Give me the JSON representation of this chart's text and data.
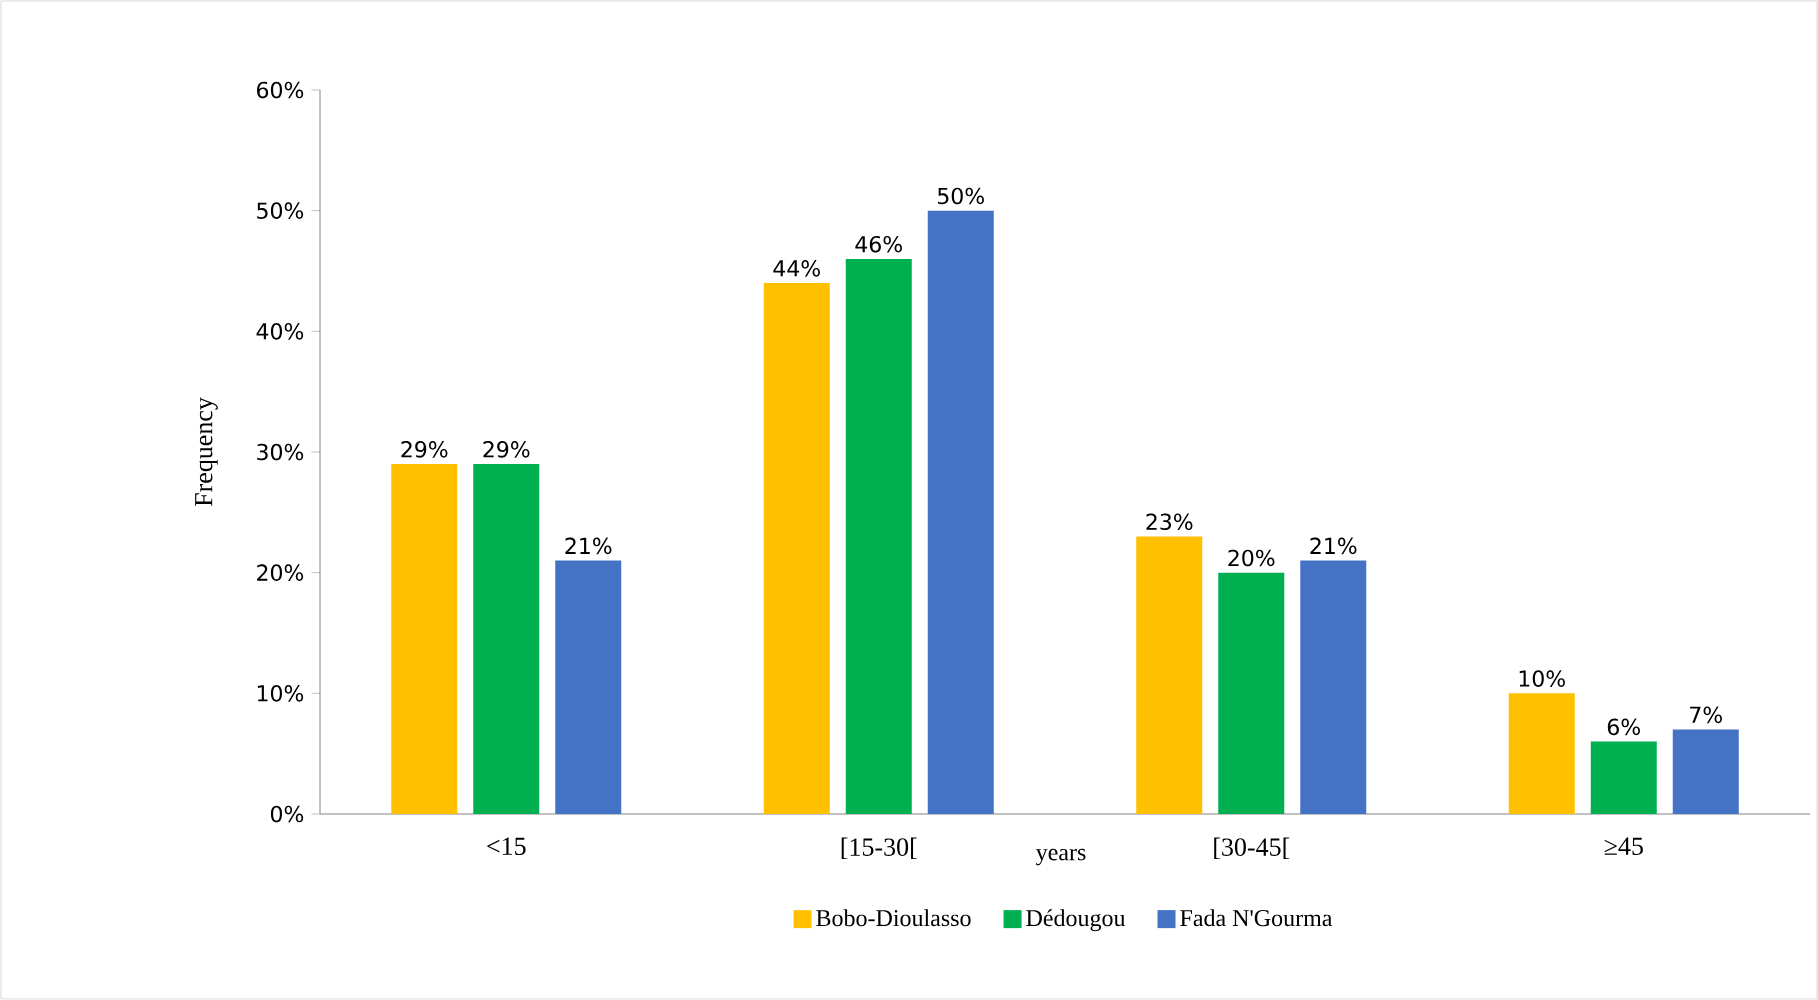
{
  "chart_data": {
    "type": "bar",
    "xlabel": "years",
    "ylabel": "Frequency",
    "categories": [
      "<15",
      "[15-30[",
      "[30-45[",
      "≥45"
    ],
    "series": [
      {
        "name": "Bobo-Dioulasso",
        "color": "#ffc000",
        "values": [
          29,
          44,
          23,
          10
        ],
        "value_labels": [
          "29%",
          "44%",
          "23%",
          "10%"
        ]
      },
      {
        "name": "Dédougou",
        "color": "#00b050",
        "values": [
          29,
          46,
          20,
          6
        ],
        "value_labels": [
          "29%",
          "46%",
          "20%",
          "6%"
        ]
      },
      {
        "name": "Fada N'Gourma",
        "color": "#4472c4",
        "values": [
          21,
          50,
          21,
          7
        ],
        "value_labels": [
          "21%",
          "50%",
          "21%",
          "7%"
        ]
      }
    ],
    "ylim": [
      0,
      60
    ],
    "yticks": [
      {
        "value": 0,
        "label": "0%"
      },
      {
        "value": 10,
        "label": "10%"
      },
      {
        "value": 20,
        "label": "20%"
      },
      {
        "value": 30,
        "label": "30%"
      },
      {
        "value": 40,
        "label": "40%"
      },
      {
        "value": 50,
        "label": "50%"
      },
      {
        "value": 60,
        "label": "60%"
      }
    ],
    "legend": "bottom"
  }
}
